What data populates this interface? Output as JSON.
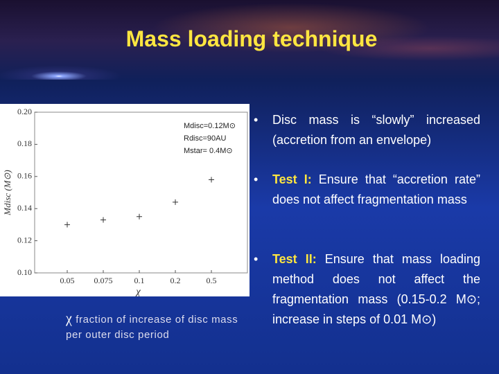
{
  "title": "Mass loading technique",
  "chart_data": {
    "type": "scatter",
    "categories": [
      "0.05",
      "0.075",
      "0.1",
      "0.2",
      "0.5"
    ],
    "values": [
      0.13,
      0.133,
      0.135,
      0.144,
      0.158
    ],
    "ylim": [
      0.1,
      0.2
    ],
    "yticks": [
      {
        "value": 0.1,
        "label": "0.10"
      },
      0.12,
      0.14,
      0.16,
      0.18,
      {
        "value": 0.2,
        "label": "0.20"
      }
    ],
    "xlabel": "χ",
    "ylabel": "Mdisc (M⊙)",
    "color": "#333333",
    "annotations": [
      "Mdisc=0.12M⊙",
      "Rdisc=90AU",
      "Mstar= 0.4M⊙"
    ]
  },
  "caption": {
    "symbol": "χ",
    "text": "fraction of increase of disc mass per outer disc period"
  },
  "bullets": [
    {
      "text": "Disc mass is “slowly” increased (accretion from an envelope)"
    },
    {
      "label": "Test I:",
      "text": "Ensure that “accretion rate” does not affect fragmentation mass"
    },
    {
      "label": "Test II:",
      "text": "Ensure that mass loading method does not affect the fragmentation mass (0.15-0.2 M⊙; increase in steps of 0.01 M⊙)"
    }
  ]
}
